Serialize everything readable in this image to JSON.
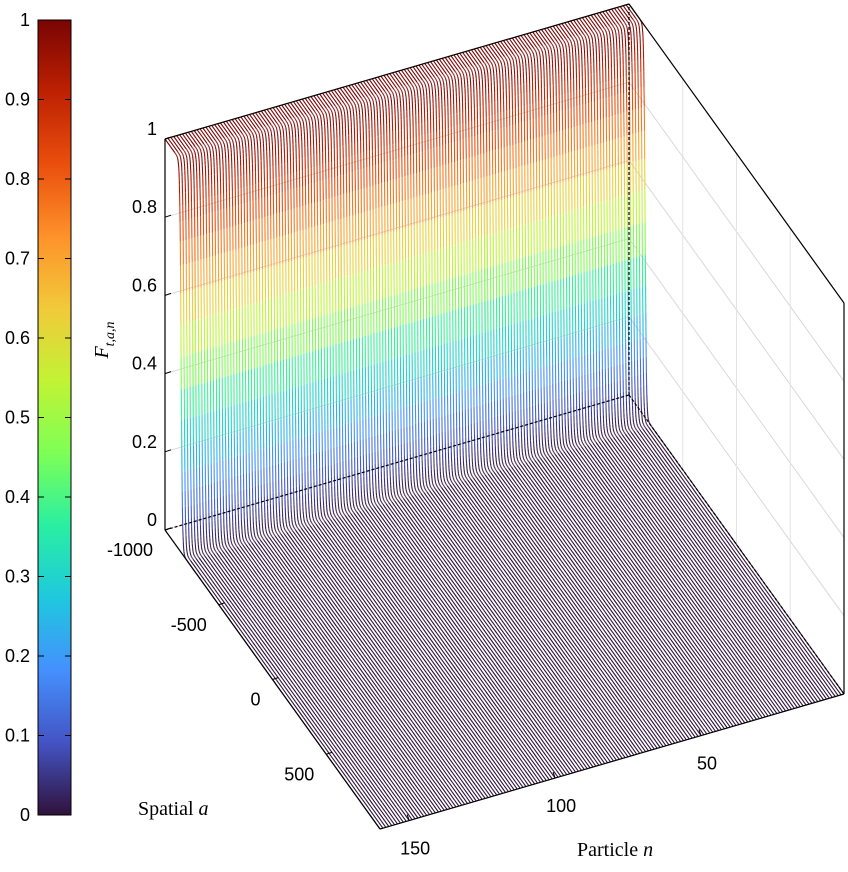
{
  "chart_data": {
    "type": "surface",
    "zlabel": "F",
    "zlabel_sub": "t,a,n",
    "xlabel_text": "Spatial ",
    "xlabel_var": "a",
    "ylabel_text": "Particle ",
    "ylabel_var": "n",
    "a_range": [
      -1000,
      1000
    ],
    "n_range": [
      1,
      160
    ],
    "z_range": [
      0,
      1
    ],
    "a_ticks": [
      "-1000",
      "-500",
      "0",
      "500"
    ],
    "a_tick_values": [
      -1000,
      -500,
      0,
      500
    ],
    "n_ticks": [
      "50",
      "100",
      "150"
    ],
    "n_tick_values": [
      50,
      100,
      150
    ],
    "z_ticks": [
      "0",
      "0.2",
      "0.4",
      "0.6",
      "0.8",
      "1"
    ],
    "z_tick_values": [
      0,
      0.2,
      0.4,
      0.6,
      0.8,
      1
    ],
    "colorbar_ticks": [
      "0",
      "0.1",
      "0.2",
      "0.3",
      "0.4",
      "0.5",
      "0.6",
      "0.7",
      "0.8",
      "0.9",
      "1"
    ],
    "colorbar_values": [
      0,
      0.1,
      0.2,
      0.3,
      0.4,
      0.5,
      0.6,
      0.7,
      0.8,
      0.9,
      1
    ],
    "colormap": "turbo",
    "colormap_stops": [
      "#30123b",
      "#4454c4",
      "#4490fe",
      "#1fc8de",
      "#29efa2",
      "#7dff56",
      "#c1f334",
      "#f1ca3a",
      "#fe922a",
      "#ea4f0d",
      "#be2102",
      "#7a0403"
    ],
    "step_location_a": -850,
    "value_below_step": 1,
    "value_above_step": 0,
    "grid": true
  }
}
